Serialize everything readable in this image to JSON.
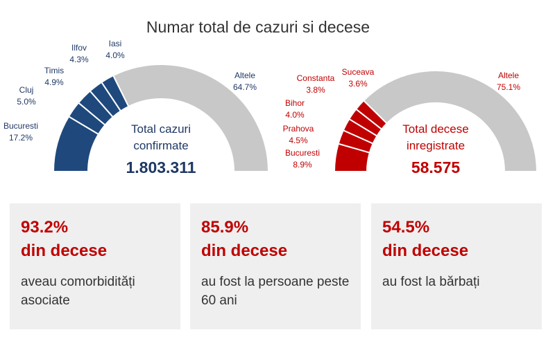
{
  "title": "Numar total de cazuri si decese",
  "colors": {
    "cases": "#1f497d",
    "deaths": "#c00000",
    "other": "#c8c8c8",
    "stat_text": "#c00000"
  },
  "chart_data": [
    {
      "type": "pie",
      "variant": "half-donut",
      "center_title_lines": [
        "Total cazuri",
        "confirmate"
      ],
      "center_value": "1.803.311",
      "slices": [
        {
          "name": "Bucuresti",
          "value": 17.2,
          "label": "17.2%"
        },
        {
          "name": "Cluj",
          "value": 5.0,
          "label": "5.0%"
        },
        {
          "name": "Timis",
          "value": 4.9,
          "label": "4.9%"
        },
        {
          "name": "Ilfov",
          "value": 4.3,
          "label": "4.3%"
        },
        {
          "name": "Iasi",
          "value": 4.0,
          "label": "4.0%"
        },
        {
          "name": "Altele",
          "value": 64.7,
          "label": "64.7%"
        }
      ]
    },
    {
      "type": "pie",
      "variant": "half-donut",
      "center_title_lines": [
        "Total decese",
        "inregistrate"
      ],
      "center_value": "58.575",
      "slices": [
        {
          "name": "Bucuresti",
          "value": 8.9,
          "label": "8.9%"
        },
        {
          "name": "Prahova",
          "value": 4.5,
          "label": "4.5%"
        },
        {
          "name": "Bihor",
          "value": 4.0,
          "label": "4.0%"
        },
        {
          "name": "Constanta",
          "value": 3.8,
          "label": "3.8%"
        },
        {
          "name": "Suceava",
          "value": 3.6,
          "label": "3.6%"
        },
        {
          "name": "Altele",
          "value": 75.1,
          "label": "75.1%"
        }
      ]
    }
  ],
  "stats": [
    {
      "value": "93.2%",
      "subtitle": "din decese",
      "description": "aveau comorbidități asociate"
    },
    {
      "value": "85.9%",
      "subtitle": "din decese",
      "description": "au fost la persoane peste 60 ani"
    },
    {
      "value": "54.5%",
      "subtitle": "din decese",
      "description": "au fost la bărbați"
    }
  ]
}
